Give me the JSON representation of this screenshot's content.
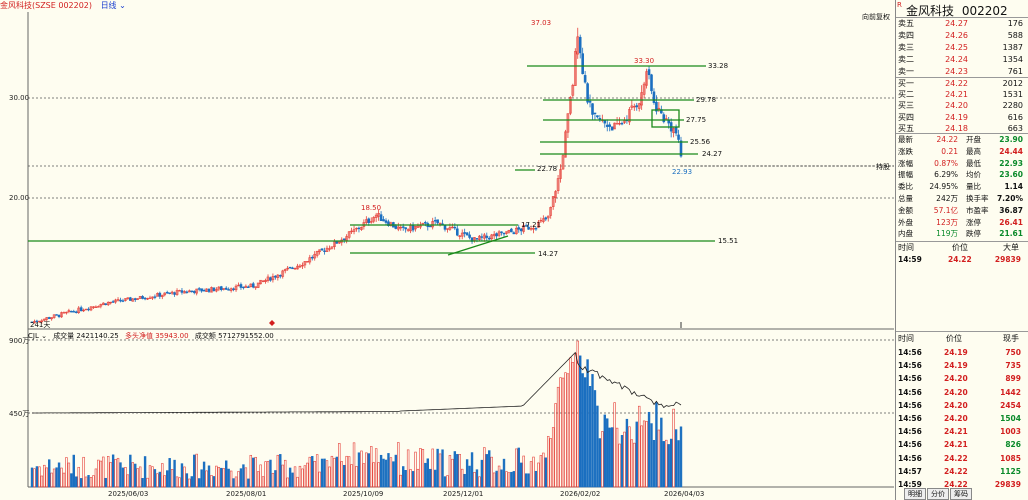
{
  "title_bar": {
    "name": "金风科技(SZSE 002202)",
    "period": "日线 ⌄"
  },
  "chart_badge": "向前复权",
  "label_241": "241天",
  "y_axis": {
    "ticks": [
      "30.00",
      "20.00"
    ],
    "volume_ticks": [
      "900万",
      "450万"
    ]
  },
  "x_axis": {
    "ticks": [
      "2025/06/03",
      "2025/08/01",
      "2025/10/09",
      "2025/12/01",
      "2026/02/02",
      "2026/04/03"
    ]
  },
  "price_annotations": [
    "37.03",
    "33.30",
    "33.28",
    "29.78",
    "27.75",
    "25.56",
    "24.27",
    "22.93",
    "22.78",
    "18.50",
    "17.21",
    "15.51",
    "14.27"
  ],
  "current_price_tag": "持股",
  "indicator": {
    "name": "CJL ⌄",
    "vol_label": "成交量 2421140.25",
    "net_label": "多头净值 35943.00",
    "amount_label": "成交额 5712791552.00"
  },
  "quote_panel": {
    "stock_name": "金风科技",
    "stock_code": "002202",
    "r_mark": "R",
    "asks": [
      {
        "label": "卖五",
        "price": "24.27",
        "vol": "176"
      },
      {
        "label": "卖四",
        "price": "24.26",
        "vol": "588"
      },
      {
        "label": "卖三",
        "price": "24.25",
        "vol": "1387"
      },
      {
        "label": "卖二",
        "price": "24.24",
        "vol": "1354"
      },
      {
        "label": "卖一",
        "price": "24.23",
        "vol": "761"
      }
    ],
    "bids": [
      {
        "label": "买一",
        "price": "24.22",
        "vol": "2012"
      },
      {
        "label": "买二",
        "price": "24.21",
        "vol": "1531"
      },
      {
        "label": "买三",
        "price": "24.20",
        "vol": "2280"
      },
      {
        "label": "买四",
        "price": "24.19",
        "vol": "616"
      },
      {
        "label": "买五",
        "price": "24.18",
        "vol": "663"
      }
    ],
    "stats": [
      {
        "k1": "最新",
        "v1": "24.22",
        "k2": "开盘",
        "v2": "23.90",
        "c1": "red",
        "c2": "green"
      },
      {
        "k1": "涨跌",
        "v1": "0.21",
        "k2": "最高",
        "v2": "24.44",
        "c1": "red",
        "c2": "red"
      },
      {
        "k1": "涨幅",
        "v1": "0.87%",
        "k2": "最低",
        "v2": "22.93",
        "c1": "red",
        "c2": "green"
      },
      {
        "k1": "振幅",
        "v1": "6.29%",
        "k2": "均价",
        "v2": "23.60",
        "c1": "black",
        "c2": "green"
      },
      {
        "k1": "委比",
        "v1": "24.95%",
        "k2": "量比",
        "v2": "1.14",
        "c1": "black",
        "c2": "black"
      },
      {
        "k1": "总量",
        "v1": "242万",
        "k2": "换手率",
        "v2": "7.20%",
        "c1": "black",
        "c2": "black"
      },
      {
        "k1": "金额",
        "v1": "57.1亿",
        "k2": "市盈率",
        "v2": "36.87",
        "c1": "red",
        "c2": "black"
      },
      {
        "k1": "外盘",
        "v1": "123万",
        "k2": "涨停",
        "v2": "26.41",
        "c1": "red",
        "c2": "red"
      },
      {
        "k1": "内盘",
        "v1": "119万",
        "k2": "跌停",
        "v2": "21.61",
        "c1": "green",
        "c2": "green"
      }
    ],
    "big_order_header": {
      "time": "时间",
      "price": "价位",
      "vol": "大单"
    },
    "big_order": {
      "time": "14:59",
      "price": "24.22",
      "vol": "29839"
    },
    "tick_header": {
      "time": "时间",
      "price": "价位",
      "vol": "现手"
    },
    "ticks": [
      {
        "time": "14:56",
        "price": "24.19",
        "vol": "750",
        "c": "red"
      },
      {
        "time": "14:56",
        "price": "24.19",
        "vol": "735",
        "c": "red"
      },
      {
        "time": "14:56",
        "price": "24.20",
        "vol": "899",
        "c": "red"
      },
      {
        "time": "14:56",
        "price": "24.20",
        "vol": "1442",
        "c": "red"
      },
      {
        "time": "14:56",
        "price": "24.20",
        "vol": "2454",
        "c": "red"
      },
      {
        "time": "14:56",
        "price": "24.20",
        "vol": "1504",
        "c": "green"
      },
      {
        "time": "14:56",
        "price": "24.21",
        "vol": "1003",
        "c": "red"
      },
      {
        "time": "14:56",
        "price": "24.21",
        "vol": "826",
        "c": "green"
      },
      {
        "time": "14:56",
        "price": "24.22",
        "vol": "1085",
        "c": "red"
      },
      {
        "time": "14:57",
        "price": "24.22",
        "vol": "1125",
        "c": "green"
      },
      {
        "time": "14:59",
        "price": "24.22",
        "vol": "29839",
        "c": "red"
      }
    ],
    "tabs": [
      "明细",
      "分价",
      "筹码"
    ]
  },
  "colors": {
    "up": "#e5403a",
    "down": "#1b6fc0",
    "trend": "#1a8a1a",
    "bg": "#fefdf0"
  }
}
